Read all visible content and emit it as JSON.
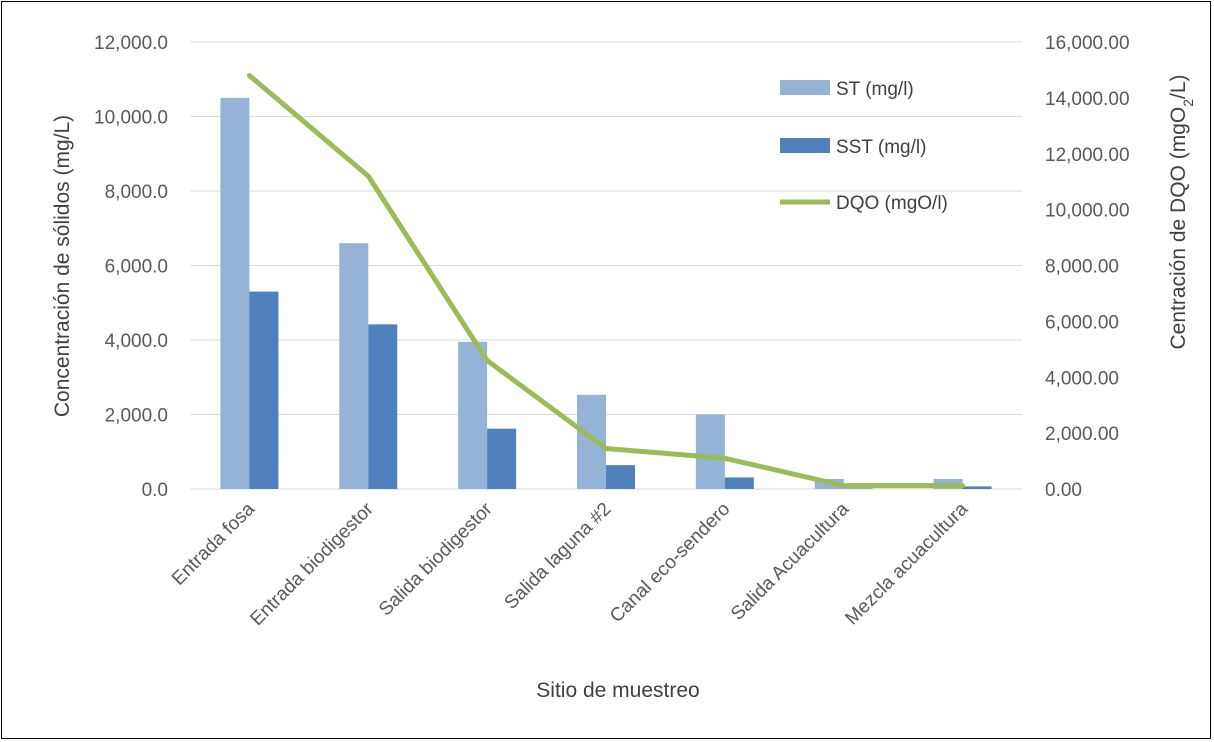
{
  "chart_data": {
    "type": "bar",
    "title": "",
    "xlabel": "Sitio de muestreo",
    "ylabel": "Concentración de sólidos (mg/L)",
    "y2label_parts": {
      "prefix": "Centración de DQO (mgO",
      "sub": "2",
      "suffix": "/L)"
    },
    "categories": [
      "Entrada fosa",
      "Entrada biodigestor",
      "Salida biodigestor",
      "Salida laguna #2",
      "Canal eco-sendero",
      "Salida Acuacultura",
      "Mezcla acuacultura"
    ],
    "series": [
      {
        "name": "ST (mg/l)",
        "type": "bar",
        "axis": "left",
        "color": "#95b3d7",
        "values": [
          10500,
          6600,
          3950,
          2530,
          2000,
          270,
          270
        ]
      },
      {
        "name": "SST (mg/l)",
        "type": "bar",
        "axis": "left",
        "color": "#4f81bd",
        "values": [
          5300,
          4420,
          1620,
          640,
          310,
          15,
          70
        ]
      },
      {
        "name": "DQO (mgO/l)",
        "type": "line",
        "axis": "right",
        "color": "#9bbb59",
        "values": [
          14800,
          11200,
          4600,
          1450,
          1100,
          120,
          120
        ]
      }
    ],
    "ylim": [
      0,
      12000
    ],
    "y_ticks": [
      "0.0",
      "2,000.0",
      "4,000.0",
      "6,000.0",
      "8,000.0",
      "10,000.0",
      "12,000.0"
    ],
    "y2lim": [
      0,
      16000
    ],
    "y2_ticks": [
      "0.00",
      "2,000.00",
      "4,000.00",
      "6,000.00",
      "8,000.00",
      "10,000.00",
      "12,000.00",
      "14,000.00",
      "16,000.00"
    ],
    "grid": true,
    "legend_position": "top-right"
  }
}
